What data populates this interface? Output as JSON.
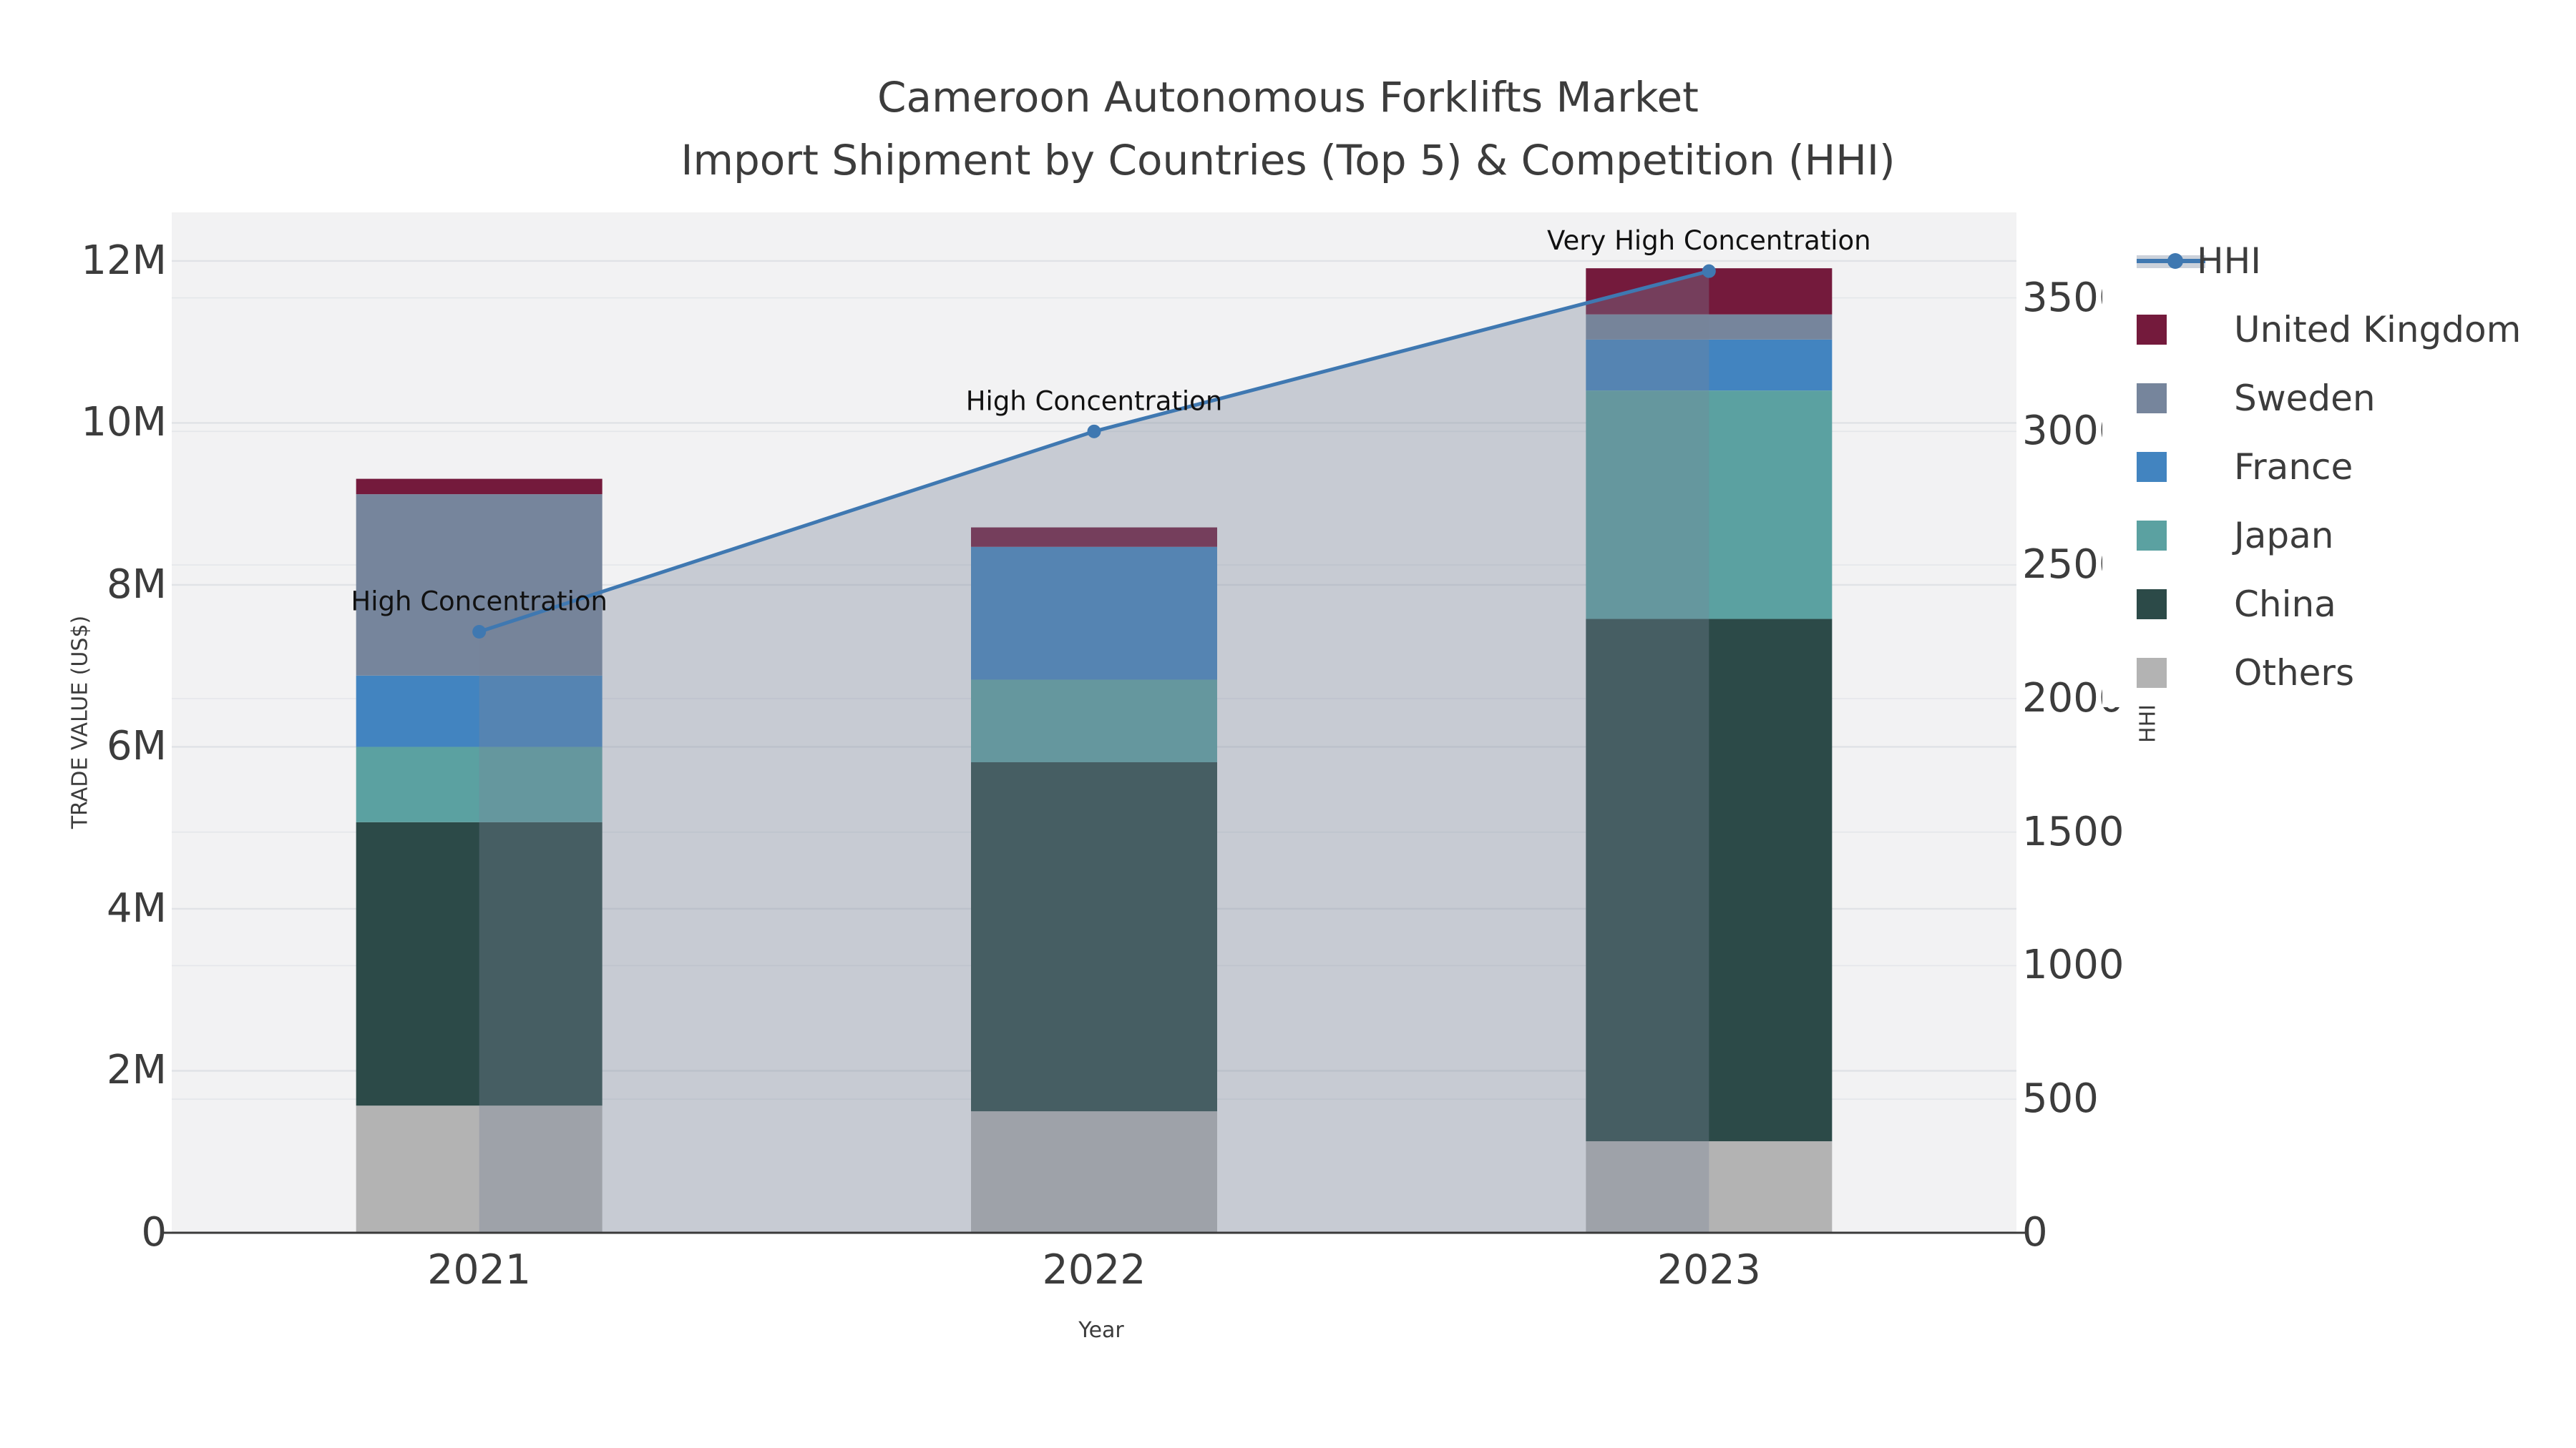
{
  "title": {
    "line1": "Cameroon Autonomous Forklifts Market",
    "line2": "Import Shipment by Countries (Top 5) & Competition (HHI)"
  },
  "axes": {
    "x": {
      "title": "Year",
      "categories": [
        "2021",
        "2022",
        "2023"
      ]
    },
    "y_left": {
      "title": "TRADE VALUE (US$)",
      "tick_labels": [
        "0",
        "2M",
        "4M",
        "6M",
        "8M",
        "10M",
        "12M"
      ],
      "tick_values": [
        0,
        2,
        4,
        6,
        8,
        10,
        12
      ],
      "range": [
        0,
        12.6
      ],
      "unit": "million US$"
    },
    "y_right": {
      "title": "HHI",
      "tick_labels": [
        "0",
        "500",
        "1000",
        "1500",
        "2000",
        "2500",
        "3000",
        "3500"
      ],
      "tick_values": [
        0,
        500,
        1000,
        1500,
        2000,
        2500,
        3000,
        3500
      ],
      "range": [
        0,
        3820
      ]
    }
  },
  "legend": {
    "position": "right-of-plot",
    "items": [
      {
        "label": "HHI",
        "marker": "line-on-area",
        "line_color": "#3f78b1",
        "area_color": "#cbd1da"
      },
      {
        "label": "United Kingdom",
        "marker": "square",
        "color": "#741a3c"
      },
      {
        "label": "Sweden",
        "marker": "square",
        "color": "#76859c"
      },
      {
        "label": "France",
        "marker": "square",
        "color": "#4284c0"
      },
      {
        "label": "Japan",
        "marker": "square",
        "color": "#5ba1a1"
      },
      {
        "label": "China",
        "marker": "square",
        "color": "#2c4a48"
      },
      {
        "label": "Others",
        "marker": "square",
        "color": "#b3b3b3"
      }
    ]
  },
  "chart_data": {
    "type": "combo-stacked-bar-line",
    "title": "Cameroon Autonomous Forklifts Market — Import Shipment by Countries (Top 5) & Competition (HHI)",
    "categories": [
      "2021",
      "2022",
      "2023"
    ],
    "bar_value_unit": "million US$",
    "bar_series": [
      {
        "name": "Others",
        "color": "#b3b3b3",
        "values": [
          1.57,
          1.5,
          1.13
        ]
      },
      {
        "name": "China",
        "color": "#2c4a48",
        "values": [
          3.5,
          4.31,
          6.45
        ]
      },
      {
        "name": "Japan",
        "color": "#5ba1a1",
        "values": [
          0.93,
          1.02,
          2.82
        ]
      },
      {
        "name": "France",
        "color": "#4284c0",
        "values": [
          0.88,
          1.64,
          0.63
        ]
      },
      {
        "name": "Sweden",
        "color": "#76859c",
        "values": [
          2.24,
          0.0,
          0.31
        ]
      },
      {
        "name": "United Kingdom",
        "color": "#741a3c",
        "values": [
          0.19,
          0.24,
          0.57
        ]
      }
    ],
    "line_series": {
      "name": "HHI",
      "axis": "right",
      "color": "#3f78b1",
      "area_fill": "rgba(119,131,153,0.35)",
      "values": [
        2250,
        3000,
        3600
      ]
    },
    "annotations": [
      {
        "x": "2021",
        "text": "High Concentration"
      },
      {
        "x": "2022",
        "text": "High Concentration"
      },
      {
        "x": "2023",
        "text": "Very High Concentration"
      }
    ],
    "xlabel": "Year",
    "ylabel_left": "TRADE VALUE (US$)",
    "ylabel_right": "HHI",
    "left_axis_range": [
      0,
      12.6
    ],
    "right_axis_range": [
      0,
      3820
    ],
    "grid": true,
    "legend_position": "right"
  },
  "colors": {
    "page_bg": "#ffffff",
    "plot_bg": "#f2f2f3",
    "grid_major": "#e0e2e6",
    "grid_minor": "#e4e6ea",
    "spine": "#3a3a3a",
    "text": "#3c3c3c",
    "annotation_text": "#111111"
  }
}
